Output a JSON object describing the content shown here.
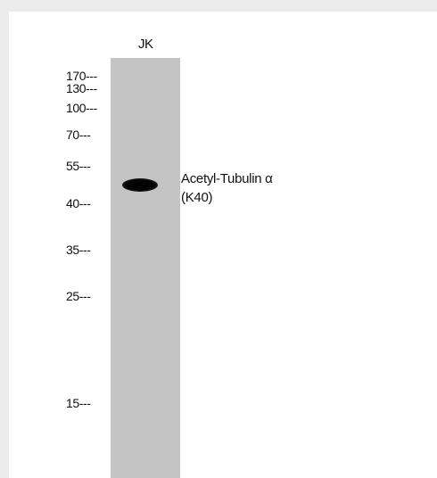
{
  "blot": {
    "lane_label": "JK",
    "markers": [
      "170---",
      "130---",
      "100---",
      "70---",
      "55---",
      "40---",
      "35---",
      "25---",
      "15---"
    ],
    "band_label_line1": "Acetyl-Tubulin α",
    "band_label_line2": "(K40)",
    "colors": {
      "background": "#ececec",
      "panel": "#ffffff",
      "lane": "#c4c4c4",
      "band": "#000000"
    }
  }
}
